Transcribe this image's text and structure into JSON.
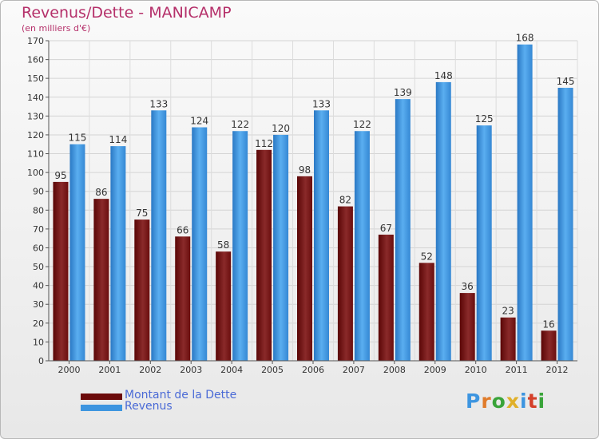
{
  "title": "Revenus/Dette - MANICAMP",
  "subtitle": "(en milliers d'€)",
  "colors": {
    "dette": "#7a1a1a",
    "revenus": "#3d95e0",
    "title": "#b5306a",
    "legend_text": "#4a6ad6"
  },
  "legend": [
    {
      "label": "Montant de la Dette",
      "color": "#6b0a0a"
    },
    {
      "label": "Revenus",
      "color": "#3d95e0"
    }
  ],
  "logo": {
    "text": "Proxiti"
  },
  "chart_data": {
    "type": "bar",
    "categories": [
      "2000",
      "2001",
      "2002",
      "2003",
      "2004",
      "2005",
      "2006",
      "2007",
      "2008",
      "2009",
      "2010",
      "2011",
      "2012"
    ],
    "series": [
      {
        "name": "Montant de la Dette",
        "values": [
          95,
          86,
          75,
          66,
          58,
          112,
          98,
          82,
          67,
          52,
          36,
          23,
          16
        ]
      },
      {
        "name": "Revenus",
        "values": [
          115,
          114,
          133,
          124,
          122,
          120,
          133,
          122,
          139,
          148,
          125,
          168,
          145
        ]
      }
    ],
    "ylim": [
      0,
      170
    ],
    "yticks": [
      0,
      10,
      20,
      30,
      40,
      50,
      60,
      70,
      80,
      90,
      100,
      110,
      120,
      130,
      140,
      150,
      160,
      170
    ],
    "grid": true,
    "legend_position": "bottom-left"
  }
}
